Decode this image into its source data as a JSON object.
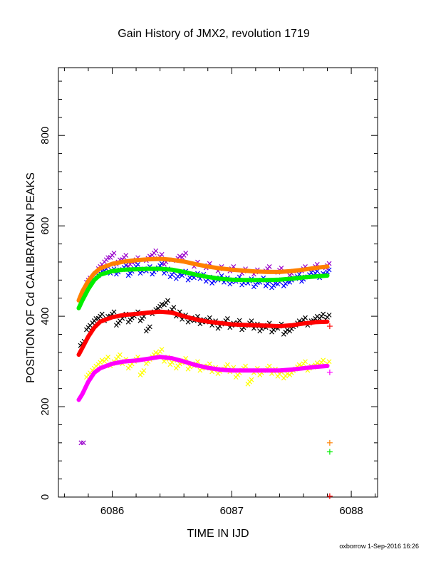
{
  "chart_data": {
    "type": "scatter",
    "title": "Gain History of JMX2, revolution 1719",
    "xlabel": "TIME IN IJD",
    "ylabel": "POSITION OF Cd CALIBRATION PEAKS",
    "xlim": [
      6085.55,
      6088.22
    ],
    "ylim": [
      0,
      950
    ],
    "x_ticks": [
      6086,
      6087,
      6088
    ],
    "y_ticks": [
      0,
      200,
      400,
      600,
      800
    ],
    "grid": false,
    "series": [
      {
        "color": "#0000ff",
        "marker": "x",
        "kind": "scatter",
        "points": [
          [
            6085.75,
            445
          ],
          [
            6085.8,
            470
          ],
          [
            6085.85,
            490
          ],
          [
            6085.9,
            495
          ],
          [
            6085.95,
            505
          ],
          [
            6086.0,
            500
          ],
          [
            6086.05,
            498
          ],
          [
            6086.1,
            508
          ],
          [
            6086.15,
            495
          ],
          [
            6086.2,
            510
          ],
          [
            6086.25,
            500
          ],
          [
            6086.3,
            505
          ],
          [
            6086.35,
            498
          ],
          [
            6086.4,
            512
          ],
          [
            6086.45,
            500
          ],
          [
            6086.5,
            492
          ],
          [
            6086.55,
            488
          ],
          [
            6086.6,
            495
          ],
          [
            6086.65,
            485
          ],
          [
            6086.7,
            490
          ],
          [
            6086.75,
            488
          ],
          [
            6086.8,
            482
          ],
          [
            6086.85,
            478
          ],
          [
            6086.9,
            485
          ],
          [
            6086.95,
            480
          ],
          [
            6087.0,
            476
          ],
          [
            6087.05,
            482
          ],
          [
            6087.1,
            474
          ],
          [
            6087.15,
            478
          ],
          [
            6087.2,
            470
          ],
          [
            6087.25,
            480
          ],
          [
            6087.3,
            472
          ],
          [
            6087.35,
            468
          ],
          [
            6087.4,
            476
          ],
          [
            6087.45,
            472
          ],
          [
            6087.5,
            480
          ],
          [
            6087.55,
            488
          ],
          [
            6087.6,
            482
          ],
          [
            6087.65,
            492
          ],
          [
            6087.7,
            495
          ],
          [
            6087.75,
            490
          ],
          [
            6087.8,
            498
          ]
        ]
      },
      {
        "color": "#9900cc",
        "marker": "x",
        "kind": "scatter",
        "points": [
          [
            6085.8,
            480
          ],
          [
            6085.9,
            510
          ],
          [
            6085.95,
            525
          ],
          [
            6086.0,
            535
          ],
          [
            6086.05,
            520
          ],
          [
            6086.1,
            530
          ],
          [
            6086.15,
            515
          ],
          [
            6086.2,
            525
          ],
          [
            6086.3,
            528
          ],
          [
            6086.35,
            540
          ],
          [
            6086.4,
            532
          ],
          [
            6086.45,
            520
          ],
          [
            6086.55,
            528
          ],
          [
            6086.6,
            535
          ],
          [
            6086.7,
            515
          ],
          [
            6086.8,
            512
          ],
          [
            6086.9,
            505
          ],
          [
            6087.0,
            505
          ],
          [
            6087.1,
            500
          ],
          [
            6087.2,
            498
          ],
          [
            6087.3,
            505
          ],
          [
            6087.4,
            502
          ],
          [
            6087.5,
            495
          ],
          [
            6087.6,
            505
          ],
          [
            6087.7,
            510
          ],
          [
            6087.8,
            512
          ]
        ]
      },
      {
        "color": "#ff8000",
        "marker": "line",
        "kind": "line",
        "points": [
          [
            6085.72,
            435
          ],
          [
            6085.75,
            455
          ],
          [
            6085.8,
            478
          ],
          [
            6085.85,
            495
          ],
          [
            6085.9,
            506
          ],
          [
            6086.0,
            516
          ],
          [
            6086.1,
            521
          ],
          [
            6086.2,
            524
          ],
          [
            6086.3,
            526
          ],
          [
            6086.4,
            527
          ],
          [
            6086.5,
            525
          ],
          [
            6086.6,
            521
          ],
          [
            6086.7,
            515
          ],
          [
            6086.8,
            510
          ],
          [
            6086.9,
            506
          ],
          [
            6087.0,
            503
          ],
          [
            6087.1,
            501
          ],
          [
            6087.2,
            499
          ],
          [
            6087.3,
            498
          ],
          [
            6087.4,
            498
          ],
          [
            6087.5,
            500
          ],
          [
            6087.6,
            503
          ],
          [
            6087.7,
            507
          ],
          [
            6087.8,
            510
          ]
        ]
      },
      {
        "color": "#00ee00",
        "marker": "line",
        "kind": "line",
        "points": [
          [
            6085.72,
            418
          ],
          [
            6085.75,
            435
          ],
          [
            6085.8,
            460
          ],
          [
            6085.85,
            480
          ],
          [
            6085.9,
            492
          ],
          [
            6086.0,
            500
          ],
          [
            6086.1,
            503
          ],
          [
            6086.2,
            504
          ],
          [
            6086.3,
            505
          ],
          [
            6086.4,
            505
          ],
          [
            6086.5,
            503
          ],
          [
            6086.6,
            498
          ],
          [
            6086.7,
            492
          ],
          [
            6086.8,
            487
          ],
          [
            6086.9,
            483
          ],
          [
            6087.0,
            481
          ],
          [
            6087.1,
            480
          ],
          [
            6087.2,
            480
          ],
          [
            6087.3,
            480
          ],
          [
            6087.4,
            481
          ],
          [
            6087.5,
            483
          ],
          [
            6087.6,
            486
          ],
          [
            6087.7,
            488
          ],
          [
            6087.8,
            490
          ]
        ]
      },
      {
        "color": "#000000",
        "marker": "x",
        "kind": "scatter",
        "points": [
          [
            6085.75,
            340
          ],
          [
            6085.8,
            375
          ],
          [
            6085.85,
            390
          ],
          [
            6085.9,
            400
          ],
          [
            6085.95,
            395
          ],
          [
            6086.0,
            405
          ],
          [
            6086.05,
            385
          ],
          [
            6086.1,
            400
          ],
          [
            6086.15,
            392
          ],
          [
            6086.2,
            405
          ],
          [
            6086.25,
            395
          ],
          [
            6086.3,
            372
          ],
          [
            6086.35,
            410
          ],
          [
            6086.4,
            422
          ],
          [
            6086.45,
            430
          ],
          [
            6086.5,
            415
          ],
          [
            6086.55,
            405
          ],
          [
            6086.6,
            398
          ],
          [
            6086.65,
            392
          ],
          [
            6086.7,
            395
          ],
          [
            6086.75,
            388
          ],
          [
            6086.8,
            392
          ],
          [
            6086.85,
            385
          ],
          [
            6086.9,
            378
          ],
          [
            6086.95,
            390
          ],
          [
            6087.0,
            380
          ],
          [
            6087.05,
            386
          ],
          [
            6087.1,
            375
          ],
          [
            6087.15,
            385
          ],
          [
            6087.2,
            378
          ],
          [
            6087.25,
            372
          ],
          [
            6087.3,
            380
          ],
          [
            6087.35,
            370
          ],
          [
            6087.4,
            378
          ],
          [
            6087.45,
            365
          ],
          [
            6087.5,
            372
          ],
          [
            6087.55,
            385
          ],
          [
            6087.6,
            392
          ],
          [
            6087.65,
            385
          ],
          [
            6087.7,
            395
          ],
          [
            6087.75,
            400
          ],
          [
            6087.8,
            398
          ]
        ]
      },
      {
        "color": "#ff0000",
        "marker": "line",
        "kind": "line",
        "points": [
          [
            6085.72,
            315
          ],
          [
            6085.75,
            330
          ],
          [
            6085.8,
            355
          ],
          [
            6085.85,
            375
          ],
          [
            6085.9,
            388
          ],
          [
            6086.0,
            398
          ],
          [
            6086.1,
            403
          ],
          [
            6086.2,
            405
          ],
          [
            6086.3,
            408
          ],
          [
            6086.4,
            410
          ],
          [
            6086.5,
            408
          ],
          [
            6086.6,
            400
          ],
          [
            6086.7,
            393
          ],
          [
            6086.8,
            388
          ],
          [
            6086.9,
            385
          ],
          [
            6087.0,
            382
          ],
          [
            6087.1,
            381
          ],
          [
            6087.2,
            380
          ],
          [
            6087.3,
            379
          ],
          [
            6087.4,
            378
          ],
          [
            6087.5,
            380
          ],
          [
            6087.6,
            384
          ],
          [
            6087.7,
            387
          ],
          [
            6087.8,
            388
          ]
        ]
      },
      {
        "color": "#ffff00",
        "marker": "x",
        "kind": "scatter",
        "points": [
          [
            6085.8,
            270
          ],
          [
            6085.85,
            285
          ],
          [
            6085.9,
            298
          ],
          [
            6085.95,
            305
          ],
          [
            6086.0,
            295
          ],
          [
            6086.05,
            310
          ],
          [
            6086.1,
            300
          ],
          [
            6086.15,
            290
          ],
          [
            6086.2,
            305
          ],
          [
            6086.25,
            275
          ],
          [
            6086.3,
            300
          ],
          [
            6086.35,
            315
          ],
          [
            6086.4,
            322
          ],
          [
            6086.45,
            305
          ],
          [
            6086.5,
            298
          ],
          [
            6086.55,
            290
          ],
          [
            6086.6,
            302
          ],
          [
            6086.65,
            288
          ],
          [
            6086.7,
            295
          ],
          [
            6086.75,
            285
          ],
          [
            6086.8,
            290
          ],
          [
            6086.85,
            282
          ],
          [
            6086.9,
            278
          ],
          [
            6086.95,
            288
          ],
          [
            6087.0,
            282
          ],
          [
            6087.05,
            270
          ],
          [
            6087.1,
            285
          ],
          [
            6087.15,
            255
          ],
          [
            6087.2,
            280
          ],
          [
            6087.25,
            275
          ],
          [
            6087.3,
            285
          ],
          [
            6087.35,
            278
          ],
          [
            6087.4,
            272
          ],
          [
            6087.45,
            268
          ],
          [
            6087.5,
            275
          ],
          [
            6087.55,
            288
          ],
          [
            6087.6,
            295
          ],
          [
            6087.65,
            285
          ],
          [
            6087.7,
            292
          ],
          [
            6087.75,
            298
          ],
          [
            6087.8,
            295
          ]
        ]
      },
      {
        "color": "#ff00ff",
        "marker": "line",
        "kind": "line",
        "points": [
          [
            6085.72,
            215
          ],
          [
            6085.75,
            228
          ],
          [
            6085.8,
            255
          ],
          [
            6085.85,
            275
          ],
          [
            6085.9,
            285
          ],
          [
            6086.0,
            295
          ],
          [
            6086.1,
            300
          ],
          [
            6086.2,
            302
          ],
          [
            6086.3,
            306
          ],
          [
            6086.4,
            310
          ],
          [
            6086.5,
            307
          ],
          [
            6086.6,
            300
          ],
          [
            6086.7,
            292
          ],
          [
            6086.8,
            286
          ],
          [
            6086.9,
            282
          ],
          [
            6087.0,
            280
          ],
          [
            6087.1,
            280
          ],
          [
            6087.2,
            280
          ],
          [
            6087.3,
            280
          ],
          [
            6087.4,
            280
          ],
          [
            6087.5,
            282
          ],
          [
            6087.6,
            285
          ],
          [
            6087.7,
            288
          ],
          [
            6087.8,
            290
          ]
        ]
      }
    ],
    "markers": [
      {
        "x": 6085.74,
        "y": 120,
        "color": "#9900cc",
        "marker": "x"
      },
      {
        "x": 6085.76,
        "y": 120,
        "color": "#9900cc",
        "marker": "x"
      },
      {
        "x": 6087.82,
        "y": 120,
        "color": "#ff8000",
        "marker": "+"
      },
      {
        "x": 6087.82,
        "y": 100,
        "color": "#00ee00",
        "marker": "+"
      },
      {
        "x": 6087.82,
        "y": 378,
        "color": "#ff0000",
        "marker": "+"
      },
      {
        "x": 6087.82,
        "y": 276,
        "color": "#ff00ff",
        "marker": "+"
      },
      {
        "x": 6087.82,
        "y": 2,
        "color": "#ff0000",
        "marker": "+"
      }
    ]
  },
  "footer": {
    "credit": "oxborrow  1-Sep-2016 16:26"
  }
}
